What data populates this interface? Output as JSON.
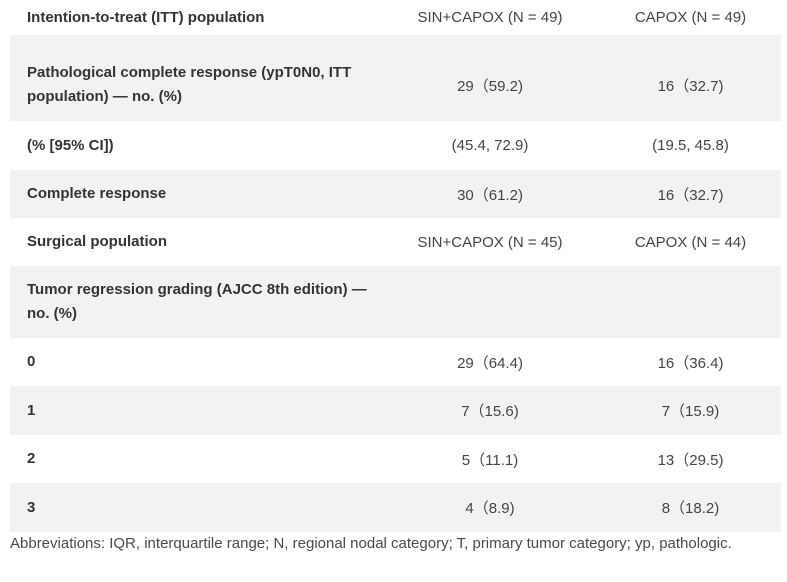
{
  "table": {
    "rows": [
      {
        "label": "Intention-to-treat (ITT) population",
        "sin": "SIN+CAPOX (N = 49)",
        "capox": "CAPOX (N = 49)"
      },
      {
        "label": "Pathological complete response (ypT0N0, ITT population) — no. (%)",
        "sin": "29（59.2)",
        "capox": "16（32.7)"
      },
      {
        "label": "(% [95% CI])",
        "sin": "(45.4, 72.9)",
        "capox": "(19.5, 45.8)"
      },
      {
        "label": "Complete response",
        "sin": "30（61.2)",
        "capox": "16（32.7)"
      },
      {
        "label": "Surgical population",
        "sin": "SIN+CAPOX (N = 45)",
        "capox": "CAPOX (N = 44)"
      },
      {
        "label": "Tumor regression grading (AJCC 8th edition) — no. (%)",
        "sin": "",
        "capox": ""
      },
      {
        "label": "0",
        "sin": "29（64.4)",
        "capox": "16（36.4)"
      },
      {
        "label": "1",
        "sin": "7（15.6)",
        "capox": "7（15.9)"
      },
      {
        "label": "2",
        "sin": "5（11.1)",
        "capox": "13（29.5)"
      },
      {
        "label": "3",
        "sin": "4（8.9)",
        "capox": "8（18.2)"
      }
    ]
  },
  "footnote": "Abbreviations: IQR, interquartile range; N, regional nodal category; T, primary tumor category; yp, pathologic."
}
